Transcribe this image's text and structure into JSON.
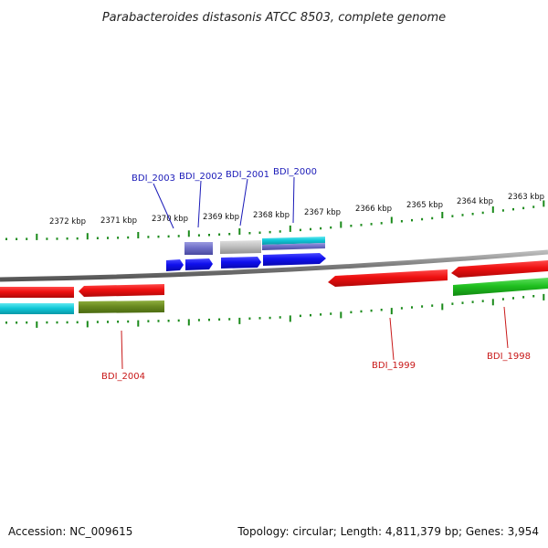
{
  "title": "Parabacteroides distasonis ATCC 8503, complete genome",
  "footer": {
    "accession": "Accession: NC_009615",
    "summary": "Topology: circular; Length: 4,811,379 bp; Genes: 3,954"
  },
  "ticks": [
    "2372 kbp",
    "2371 kbp",
    "2370 kbp",
    "2369 kbp",
    "2368 kbp",
    "2367 kbp",
    "2366 kbp",
    "2365 kbp",
    "2364 kbp",
    "2363 kbp"
  ],
  "gene_labels": {
    "bdi_2003": "BDI_2003",
    "bdi_2002": "BDI_2002",
    "bdi_2001": "BDI_2001",
    "bdi_2000": "BDI_2000",
    "bdi_2004": "BDI_2004",
    "bdi_1999": "BDI_1999",
    "bdi_1998": "BDI_1998"
  },
  "colors": {
    "backbone": "#808080",
    "tick_green": "#1a8a1a",
    "gene_blue": "#1010ee",
    "gene_red": "#ee1010",
    "gene_cyan": "#10c8d8",
    "gene_green": "#20c020",
    "gene_olive": "#6a8a20",
    "gene_purple": "#7070c8",
    "gene_grey": "#b8b8b8"
  }
}
